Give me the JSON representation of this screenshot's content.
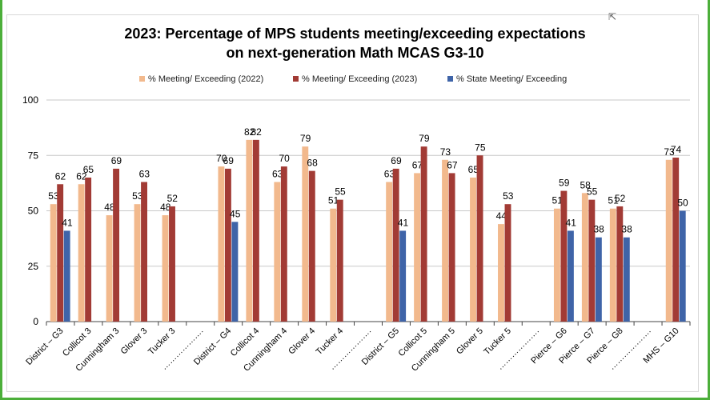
{
  "chart_data": {
    "type": "bar",
    "title_line1": "2023: Percentage of MPS students meeting/exceeding expectations",
    "title_line2": "on next-generation Math MCAS G3-10",
    "ylim": [
      0,
      100
    ],
    "yticks": [
      "0",
      "25",
      "50",
      "75",
      "100"
    ],
    "legend_position": "top",
    "colors": {
      "y2022": "#f2b98d",
      "y2023": "#a23b35",
      "state": "#3f64a8",
      "grid": "#c8c8c8",
      "axis": "#444444"
    },
    "series": [
      {
        "name": "% Meeting/ Exceeding (2022)",
        "key": "y2022"
      },
      {
        "name": "% Meeting/ Exceeding (2023)",
        "key": "y2023"
      },
      {
        "name": "% State Meeting/ Exceeding",
        "key": "state"
      }
    ],
    "categories": [
      {
        "label": "District – G3",
        "y2022": 53,
        "y2023": 62,
        "state": 41
      },
      {
        "label": "Collicot 3",
        "y2022": 62,
        "y2023": 65,
        "state": null
      },
      {
        "label": "Cunningham 3",
        "y2022": 48,
        "y2023": 69,
        "state": null
      },
      {
        "label": "Glover 3",
        "y2022": 53,
        "y2023": 63,
        "state": null
      },
      {
        "label": "Tucker 3",
        "y2022": 48,
        "y2023": 52,
        "state": null
      },
      {
        "label": "……………….",
        "y2022": null,
        "y2023": null,
        "state": null
      },
      {
        "label": "District – G4",
        "y2022": 70,
        "y2023": 69,
        "state": 45
      },
      {
        "label": "Collicot 4",
        "y2022": 82,
        "y2023": 82,
        "state": null
      },
      {
        "label": "Cunningham 4",
        "y2022": 63,
        "y2023": 70,
        "state": null
      },
      {
        "label": "Glover 4",
        "y2022": 79,
        "y2023": 68,
        "state": null
      },
      {
        "label": "Tucker 4",
        "y2022": 51,
        "y2023": 55,
        "state": null
      },
      {
        "label": "……………….",
        "y2022": null,
        "y2023": null,
        "state": null
      },
      {
        "label": "District – G5",
        "y2022": 63,
        "y2023": 69,
        "state": 41
      },
      {
        "label": "Collicot 5",
        "y2022": 67,
        "y2023": 79,
        "state": null
      },
      {
        "label": "Cunningham 5",
        "y2022": 73,
        "y2023": 67,
        "state": null
      },
      {
        "label": "Glover 5",
        "y2022": 65,
        "y2023": 75,
        "state": null
      },
      {
        "label": "Tucker 5",
        "y2022": 44,
        "y2023": 53,
        "state": null
      },
      {
        "label": "……………….",
        "y2022": null,
        "y2023": null,
        "state": null
      },
      {
        "label": "Pierce – G6",
        "y2022": 51,
        "y2023": 59,
        "state": 41
      },
      {
        "label": "Pierce – G7",
        "y2022": 58,
        "y2023": 55,
        "state": 38
      },
      {
        "label": "Pierce – G8",
        "y2022": 51,
        "y2023": 52,
        "state": 38
      },
      {
        "label": "……………….",
        "y2022": null,
        "y2023": null,
        "state": null
      },
      {
        "label": "MHS – G10",
        "y2022": 73,
        "y2023": 74,
        "state": 50
      }
    ]
  }
}
